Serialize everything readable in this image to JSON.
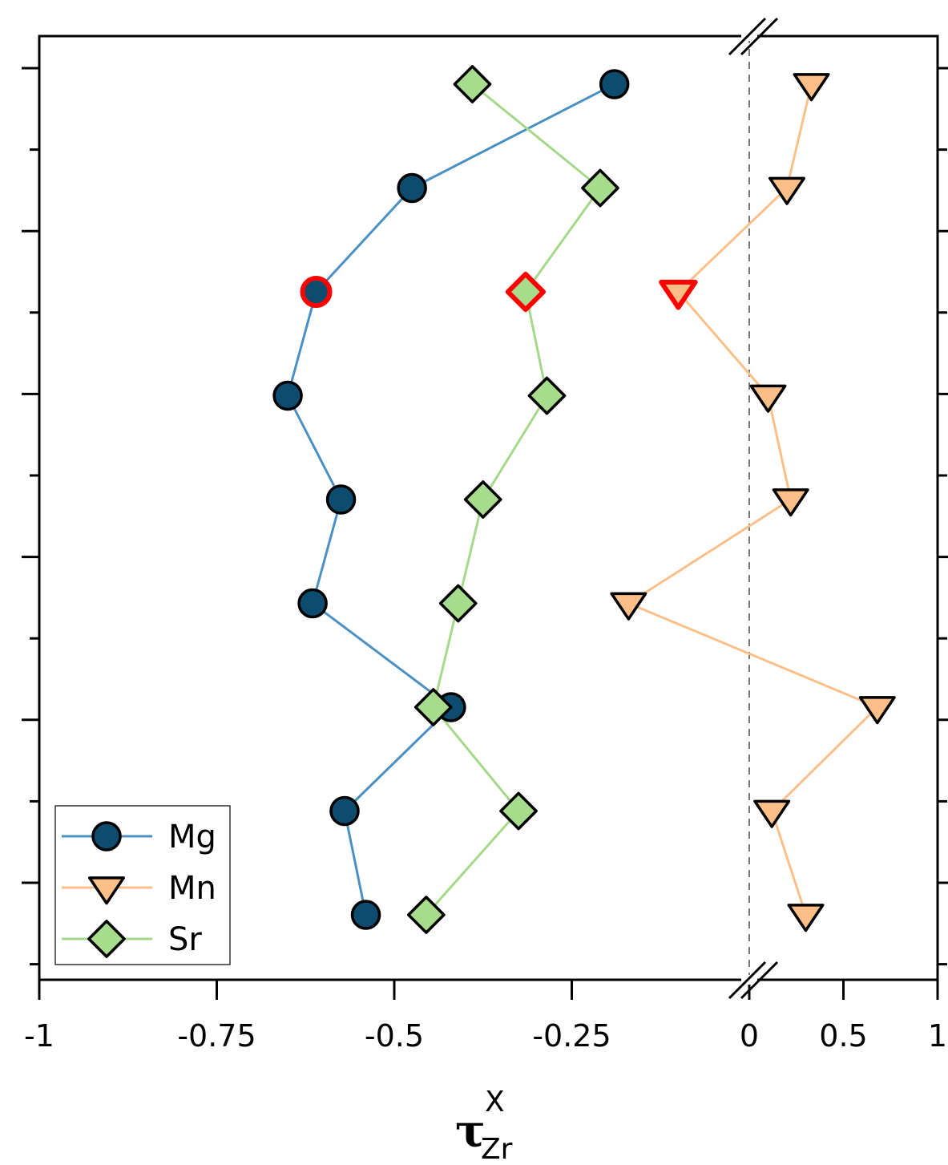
{
  "chart_data": {
    "type": "line",
    "xlabel": {
      "main": "τ",
      "sub": "Zr",
      "sup": "X"
    },
    "x_axis": {
      "segments": [
        {
          "range": [
            -1,
            0
          ],
          "ticks": [
            -1,
            -0.75,
            -0.5,
            -0.25,
            0
          ],
          "tick_labels": [
            "-1",
            "-0.75",
            "-0.5",
            "-0.25",
            "0"
          ]
        },
        {
          "range": [
            0,
            1
          ],
          "ticks": [
            0.5,
            1
          ],
          "tick_labels": [
            "0.5",
            "1"
          ]
        }
      ],
      "axis_break_at": 0,
      "zero_line": "dashed"
    },
    "y_axis": {
      "tick_labels": "none",
      "levels": 10
    },
    "legend": {
      "position": "lower-left"
    },
    "series": [
      {
        "name": "Mg",
        "marker": "circle",
        "line_color": "#4a90c2",
        "marker_fill": "#0e4c6f",
        "x": [
          -0.19,
          -0.475,
          -0.61,
          -0.65,
          -0.575,
          -0.615,
          -0.42,
          -0.57,
          -0.54
        ],
        "y": [
          1,
          2,
          3,
          4,
          5,
          6,
          7,
          8,
          9
        ],
        "highlighted_index": 2
      },
      {
        "name": "Mn",
        "marker": "triangle-down",
        "line_color": "#fbc08a",
        "marker_fill": "#fbbf87",
        "x": [
          0.33,
          0.2,
          -0.1,
          0.1,
          0.22,
          -0.17,
          0.68,
          0.12,
          0.3
        ],
        "y": [
          1,
          2,
          3,
          4,
          5,
          6,
          7,
          8,
          9
        ],
        "highlighted_index": 2
      },
      {
        "name": "Sr",
        "marker": "diamond",
        "line_color": "#a5d98a",
        "marker_fill": "#a7dc8d",
        "x": [
          -0.39,
          -0.21,
          -0.315,
          -0.285,
          -0.375,
          -0.41,
          -0.445,
          -0.325,
          -0.455
        ],
        "y": [
          1,
          2,
          3,
          4,
          5,
          6,
          7,
          8,
          9
        ],
        "highlighted_index": 2
      }
    ],
    "highlight_color": "#ff0000"
  }
}
